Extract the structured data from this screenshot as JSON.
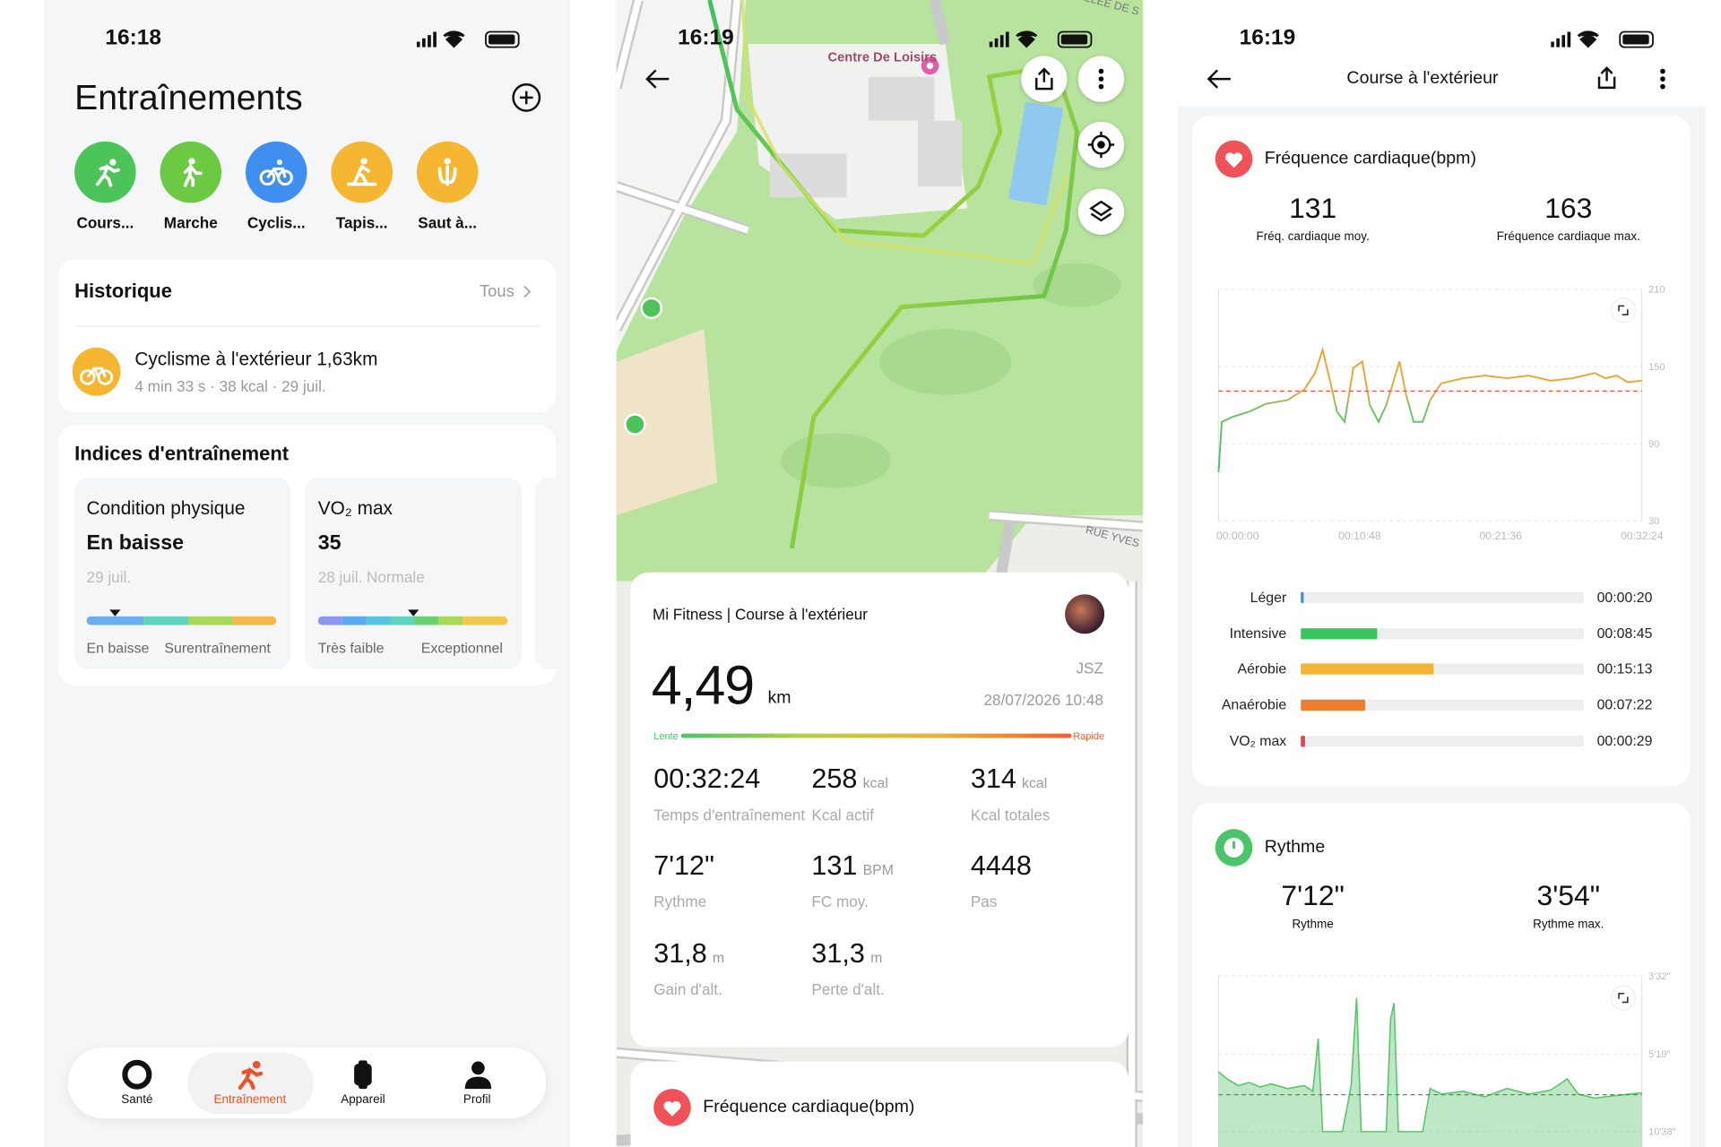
{
  "screens": [
    {
      "status_time": "16:18",
      "title": "Entraînements",
      "sports": [
        "Cours...",
        "Marche",
        "Cyclis...",
        "Tapis...",
        "Saut à..."
      ],
      "history": {
        "title": "Historique",
        "link": "Tous",
        "item_title": "Cyclisme à l'extérieur 1,63km",
        "item_meta": "4 min 33 s · 38 kcal · 29 juil."
      },
      "indices": {
        "title": "Indices d'entraînement",
        "cards": [
          {
            "title": "Condition physique",
            "value": "En baisse",
            "meta": "29 juil.",
            "scale_low": "En baisse",
            "scale_high": "Surentraînement"
          },
          {
            "title": "VO₂ max",
            "value": "35",
            "meta": "28 juil. Normale",
            "scale_low": "Très faible",
            "scale_high": "Exceptionnel"
          }
        ]
      },
      "nav": [
        "Santé",
        "Entraînement",
        "Appareil",
        "Profil"
      ]
    },
    {
      "status_time": "16:19",
      "map_labels": [
        "Centre De Loisirs",
        "RUE YVES",
        "ALLÉE DE S"
      ],
      "summary": {
        "source": "Mi Fitness | Course à l'extérieur",
        "distance": "4,49",
        "distance_unit": "km",
        "user": "JSZ",
        "date": "28/07/2026 10:48",
        "scale_low": "Lente",
        "scale_high": "Rapide",
        "stats": [
          {
            "value": "00:32:24",
            "label": "Temps d'entraînement"
          },
          {
            "value": "258",
            "unit": "kcal",
            "label": "Kcal actif"
          },
          {
            "value": "314",
            "unit": "kcal",
            "label": "Kcal totales"
          },
          {
            "value": "7'12\"",
            "label": "Rythme"
          },
          {
            "value": "131",
            "unit": "BPM",
            "label": "FC moy."
          },
          {
            "value": "4448",
            "label": "Pas"
          },
          {
            "value": "31,8",
            "unit": "m",
            "label": "Gain d'alt."
          },
          {
            "value": "31,3",
            "unit": "m",
            "label": "Perte d'alt."
          }
        ]
      },
      "next_card_title": "Fréquence cardiaque(bpm)"
    },
    {
      "status_time": "16:19",
      "title": "Course à l'extérieur",
      "hr_title": "Fréquence cardiaque(bpm)",
      "pace_title": "Rythme"
    }
  ],
  "chart_data": [
    {
      "type": "line",
      "x": [
        0,
        15,
        65,
        141,
        217,
        317,
        393,
        443,
        478,
        509,
        544,
        579,
        619,
        660,
        695,
        735,
        770,
        831,
        861,
        896,
        937,
        972,
        1022,
        1123,
        1224,
        1324,
        1425,
        1526,
        1626,
        1727,
        1777,
        1828,
        1878,
        1944
      ],
      "values": [
        68,
        107,
        111,
        115,
        121,
        124,
        132,
        145,
        163,
        141,
        115,
        107,
        149,
        154,
        120,
        107,
        120,
        154,
        128,
        107,
        107,
        124,
        137,
        141,
        143,
        141,
        143,
        139,
        141,
        145,
        141,
        143,
        138,
        139
      ],
      "stats": [
        {
          "value": 131,
          "name": "Fréq. cardiaque moy."
        },
        {
          "value": 163,
          "name": "Fréquence cardiaque max."
        }
      ],
      "xlim": [
        0,
        1944
      ],
      "xticks": [
        {
          "value": 0,
          "label": "00:00:00"
        },
        {
          "value": 648,
          "label": "00:10:48"
        },
        {
          "value": 1296,
          "label": "00:21:36"
        },
        {
          "value": 1944,
          "label": "00:32:24"
        }
      ],
      "ylim": [
        30,
        210
      ],
      "yticks": [
        30,
        90,
        150,
        210
      ],
      "grid": true,
      "reference_color": "#e8564a"
    },
    {
      "type": "bar",
      "orientation": "horizontal",
      "categories": [
        "Léger",
        "Intensive",
        "Aérobie",
        "Anaérobie",
        "VO₂ max"
      ],
      "values": [
        20,
        525,
        913,
        442,
        29
      ],
      "value_labels": [
        "00:00:20",
        "00:08:45",
        "00:15:13",
        "00:07:22",
        "00:00:29"
      ],
      "colors": [
        "#3a8ee8",
        "#3cc45c",
        "#f2b634",
        "#ef7d2e",
        "#e8434a"
      ],
      "xlim": [
        0,
        1944
      ]
    },
    {
      "type": "area",
      "x": [
        0,
        40,
        91,
        141,
        191,
        242,
        317,
        393,
        433,
        458,
        478,
        569,
        609,
        634,
        655,
        770,
        790,
        806,
        826,
        937,
        972,
        1022,
        1123,
        1224,
        1324,
        1425,
        1526,
        1601,
        1652,
        1727,
        1828,
        1944
      ],
      "values": [
        360,
        380,
        400,
        390,
        405,
        395,
        410,
        400,
        420,
        290,
        638,
        638,
        400,
        234,
        638,
        638,
        260,
        240,
        638,
        638,
        410,
        430,
        420,
        440,
        410,
        430,
        415,
        380,
        430,
        445,
        435,
        425
      ],
      "stats": [
        {
          "value": 432,
          "label": "7'12\"",
          "name": "Rythme"
        },
        {
          "value": 234,
          "label": "3'54\"",
          "name": "Rythme max."
        }
      ],
      "xlim": [
        0,
        1944
      ],
      "ylim": [
        638,
        212
      ],
      "yscale": "reciprocal",
      "yticks": [
        {
          "value": 212,
          "label": "3'32\""
        },
        {
          "value": 319,
          "label": "5'19\""
        },
        {
          "value": 638,
          "label": "10'38\""
        }
      ],
      "color": "#5cc46d"
    }
  ]
}
